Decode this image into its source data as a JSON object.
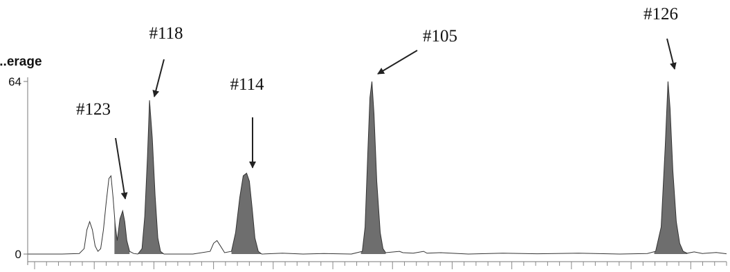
{
  "chart_data": {
    "type": "area",
    "title": "",
    "xlabel": "",
    "ylabel": "...erage",
    "ylim": [
      0,
      64
    ],
    "y_ticks": [
      0,
      64
    ],
    "y_tick_labels": [
      "0",
      "64"
    ],
    "grid": false,
    "legend": "none",
    "fill_color": "#6e6e6e",
    "line_color": "#333333",
    "x_range": [
      0,
      1015
    ],
    "series": [
      {
        "points": [
          [
            0,
            0
          ],
          [
            50,
            0
          ],
          [
            75,
            0.2
          ],
          [
            82,
            2
          ],
          [
            86,
            9
          ],
          [
            90,
            12
          ],
          [
            94,
            9
          ],
          [
            98,
            3
          ],
          [
            102,
            1
          ],
          [
            106,
            2
          ],
          [
            110,
            9
          ],
          [
            114,
            19
          ],
          [
            118,
            28
          ],
          [
            121,
            29
          ],
          [
            124,
            21
          ],
          [
            127,
            11
          ],
          [
            130,
            5
          ],
          [
            134,
            13
          ],
          [
            138,
            16
          ],
          [
            141,
            12
          ],
          [
            144,
            5
          ],
          [
            148,
            1
          ],
          [
            154,
            0.2
          ],
          [
            160,
            0
          ],
          [
            166,
            2
          ],
          [
            170,
            14
          ],
          [
            174,
            36
          ],
          [
            177,
            57
          ],
          [
            181,
            43
          ],
          [
            185,
            22
          ],
          [
            189,
            6
          ],
          [
            193,
            1
          ],
          [
            198,
            0
          ],
          [
            240,
            0
          ],
          [
            265,
            1
          ],
          [
            270,
            4
          ],
          [
            275,
            5
          ],
          [
            280,
            3
          ],
          [
            286,
            0.5
          ],
          [
            296,
            1
          ],
          [
            302,
            8
          ],
          [
            308,
            21
          ],
          [
            313,
            29
          ],
          [
            318,
            30
          ],
          [
            322,
            27
          ],
          [
            326,
            17
          ],
          [
            330,
            6
          ],
          [
            335,
            1
          ],
          [
            340,
            0
          ],
          [
            370,
            0.3
          ],
          [
            400,
            0
          ],
          [
            430,
            0.2
          ],
          [
            470,
            0
          ],
          [
            486,
            1
          ],
          [
            490,
            10
          ],
          [
            494,
            38
          ],
          [
            497,
            58
          ],
          [
            500,
            64
          ],
          [
            503,
            52
          ],
          [
            507,
            27
          ],
          [
            512,
            8
          ],
          [
            516,
            2
          ],
          [
            520,
            0.5
          ],
          [
            540,
            1
          ],
          [
            545,
            0.5
          ],
          [
            560,
            0.3
          ],
          [
            575,
            1
          ],
          [
            580,
            0.3
          ],
          [
            600,
            0.5
          ],
          [
            640,
            0
          ],
          [
            690,
            0.3
          ],
          [
            740,
            0.1
          ],
          [
            800,
            0.3
          ],
          [
            860,
            0
          ],
          [
            900,
            0.2
          ],
          [
            912,
            1
          ],
          [
            920,
            10
          ],
          [
            926,
            40
          ],
          [
            930,
            64
          ],
          [
            933,
            54
          ],
          [
            937,
            31
          ],
          [
            942,
            12
          ],
          [
            947,
            4
          ],
          [
            952,
            1
          ],
          [
            958,
            0.3
          ],
          [
            968,
            0.8
          ],
          [
            980,
            0.2
          ],
          [
            1000,
            0.6
          ],
          [
            1015,
            0.1
          ]
        ],
        "shaded_ranges": [
          [
            126,
            148
          ],
          [
            160,
            198
          ],
          [
            296,
            340
          ],
          [
            484,
            520
          ],
          [
            910,
            958
          ]
        ]
      }
    ],
    "annotations": [
      {
        "text": "#123",
        "peak_x": 138,
        "peak_y": 16
      },
      {
        "text": "#118",
        "peak_x": 177,
        "peak_y": 57
      },
      {
        "text": "#114",
        "peak_x": 318,
        "peak_y": 30
      },
      {
        "text": "#105",
        "peak_x": 500,
        "peak_y": 64
      },
      {
        "text": "#126",
        "peak_x": 930,
        "peak_y": 64
      }
    ]
  }
}
